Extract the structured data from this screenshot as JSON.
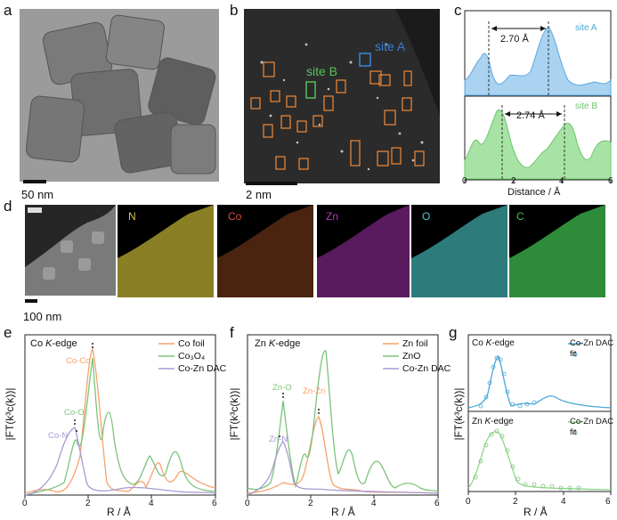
{
  "panels": {
    "a": {
      "label": "a",
      "scale": "50 nm"
    },
    "b": {
      "label": "b",
      "scale": "2 nm",
      "siteA": "site A",
      "siteB": "site B"
    },
    "c": {
      "label": "c",
      "siteA": "site A",
      "siteB": "site B",
      "distA": "2.70 Å",
      "distB": "2.74 Å",
      "xlabel": "Distance / Å",
      "xticks": [
        "0",
        "2",
        "4",
        "6"
      ]
    },
    "d": {
      "label": "d",
      "scale": "100 nm",
      "maps": [
        {
          "name": "N",
          "color": "#d8c44a"
        },
        {
          "name": "Co",
          "color": "#e06a2a"
        },
        {
          "name": "Zn",
          "color": "#b23ab8"
        },
        {
          "name": "O",
          "color": "#4ec9c9"
        },
        {
          "name": "C",
          "color": "#49c35a"
        }
      ]
    },
    "e": {
      "label": "e",
      "title": "Co K-edge",
      "title_pre": "Co ",
      "title_k": "K",
      "title_post": "-edge",
      "ylabel": "|FT(k³c(k))|",
      "xlabel": "R / Å",
      "xticks": [
        "0",
        "2",
        "4",
        "6"
      ],
      "legend": [
        "Co foil",
        "Co₃O₄",
        "Co-Zn DAC"
      ],
      "annotations": [
        "Co-Co",
        "Co-O",
        "Co-N"
      ]
    },
    "f": {
      "label": "f",
      "title_pre": "Zn ",
      "title_k": "K",
      "title_post": "-edge",
      "ylabel": "|FT(k³c(k))|",
      "xlabel": "R / Å",
      "xticks": [
        "0",
        "2",
        "4",
        "6"
      ],
      "legend": [
        "Zn foil",
        "ZnO",
        "Co-Zn DAC"
      ],
      "annotations": [
        "Zn-O",
        "Zn-Zn",
        "Zn-N"
      ]
    },
    "g": {
      "label": "g",
      "ylabel": "|FT(k³c(k))|",
      "xlabel": "R / Å",
      "xticks": [
        "0",
        "2",
        "4",
        "6"
      ],
      "top": {
        "title_pre": "Co ",
        "title_k": "K",
        "title_post": "-edge",
        "legend": [
          "Co-Zn DAC",
          "fit"
        ]
      },
      "bottom": {
        "title_pre": "Zn ",
        "title_k": "K",
        "title_post": "-edge",
        "legend": [
          "Co-Zn DAC",
          "fit"
        ]
      }
    }
  },
  "colors": {
    "orange": "#f4a26a",
    "green": "#7bc37a",
    "purple": "#a99ad6",
    "blue": "#4aa8d8",
    "lightgreen": "#8fd88a"
  }
}
